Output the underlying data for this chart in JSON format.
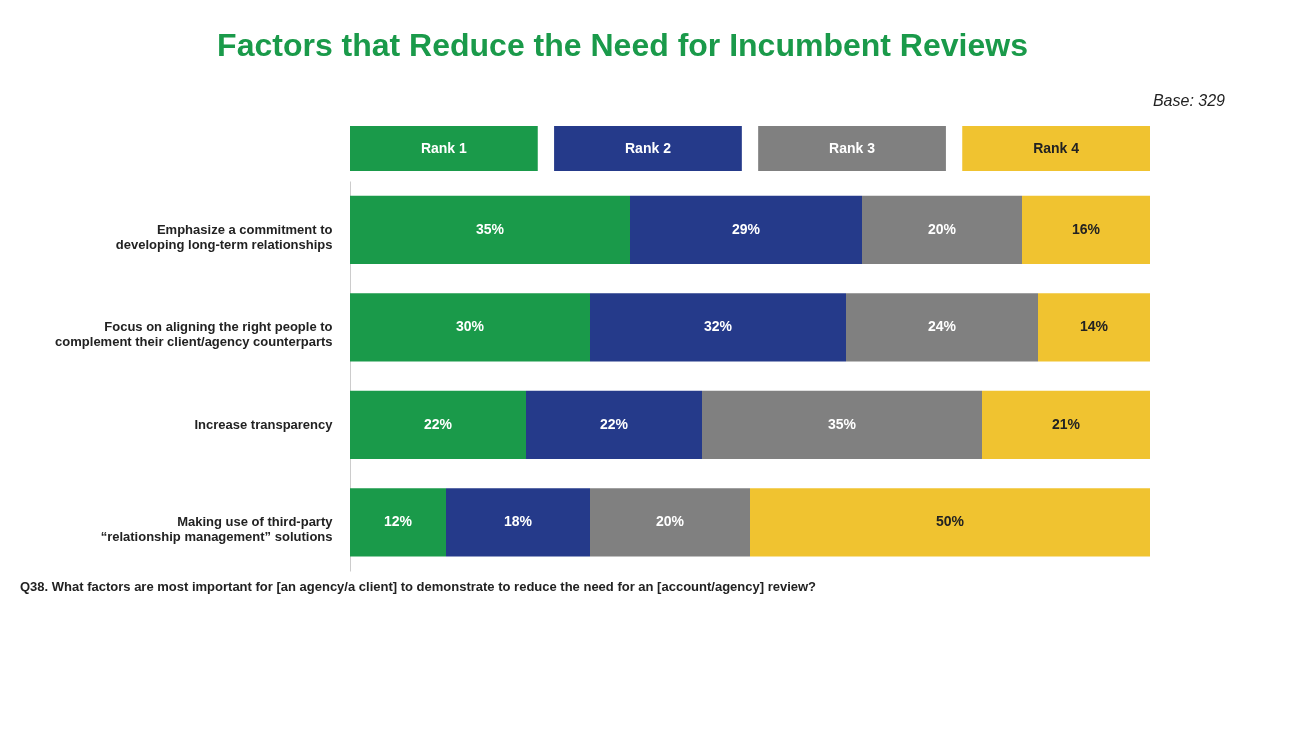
{
  "chart_data": {
    "type": "bar",
    "orientation": "horizontal",
    "stacked": true,
    "legend": "top",
    "grid": false,
    "title": "Factors that Reduce the Need for Incumbent Reviews",
    "annotations": [
      "Base: 329",
      "Q38. What factors are most important for [an agency/a client] to demonstrate to reduce the need for an [account/agency] review?"
    ],
    "categories": [
      "Emphasize a commitment to\ndeveloping long-term relationships",
      "Focus on aligning the right people to\ncomplement their client/agency counterparts",
      "Increase transparency",
      "Making use of third-party\n“relationship management” solutions"
    ],
    "series": [
      {
        "name": "Rank 1",
        "color": "#1a9a4a",
        "values": [
          35,
          30,
          22,
          12
        ],
        "value_labels": [
          "35%",
          "30%",
          "22%",
          "12%"
        ]
      },
      {
        "name": "Rank 2",
        "color": "#253a8a",
        "values": [
          29,
          32,
          22,
          18
        ],
        "value_labels": [
          "29%",
          "32%",
          "22%",
          "18%"
        ]
      },
      {
        "name": "Rank 3",
        "color": "#808080",
        "values": [
          20,
          24,
          35,
          20
        ],
        "value_labels": [
          "20%",
          "24%",
          "35%",
          "20%"
        ]
      },
      {
        "name": "Rank 4",
        "color": "#f0c330",
        "values": [
          16,
          14,
          21,
          50
        ],
        "value_labels": [
          "16%",
          "14%",
          "21%",
          "50%"
        ]
      }
    ]
  }
}
